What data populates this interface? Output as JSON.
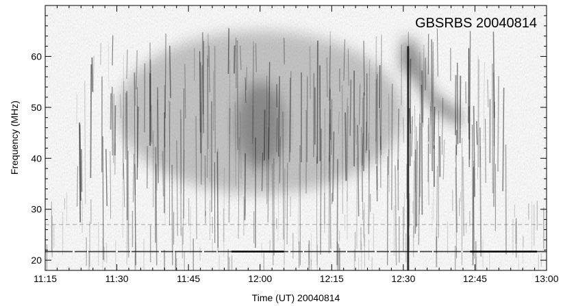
{
  "chart_data": {
    "type": "heatmap",
    "title": "GBSRBS 20040814",
    "xlabel": "Time (UT) 20040814",
    "ylabel": "Frequency (MHz)",
    "xlim": [
      "11:15",
      "13:00"
    ],
    "ylim": [
      18,
      70
    ],
    "x_ticks": [
      "11:15",
      "11:30",
      "11:45",
      "12:00",
      "12:15",
      "12:30",
      "12:45",
      "13:00"
    ],
    "y_ticks": [
      20,
      30,
      40,
      50,
      60
    ],
    "colormap": "grayscale (dark = high intensity)",
    "grid": false,
    "features": [
      {
        "name": "broadband emission",
        "start": "11:30",
        "end": "12:30",
        "freq_range_mhz": [
          33,
          65
        ]
      },
      {
        "name": "intense emission",
        "start": "11:55",
        "end": "12:05",
        "freq_range_mhz": [
          38,
          55
        ]
      },
      {
        "name": "broadband spike",
        "time": "12:31",
        "freq_range_mhz": [
          18,
          62
        ]
      },
      {
        "name": "drifting burst",
        "start": "12:30",
        "end": "12:42",
        "freq_range_mhz": [
          47,
          64
        ]
      },
      {
        "name": "narrowband interference",
        "freq_mhz": 21.7
      },
      {
        "name": "narrowband interference",
        "freq_mhz": 27
      }
    ]
  }
}
